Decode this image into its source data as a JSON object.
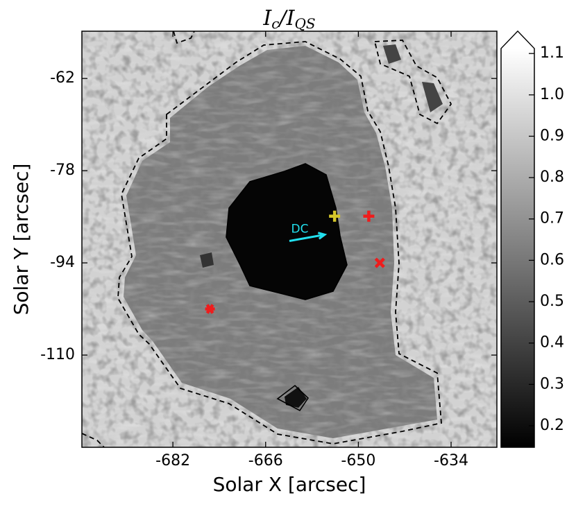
{
  "chart_data": {
    "type": "image",
    "title": [
      {
        "text": "I"
      },
      {
        "text": "c",
        "sub": true
      },
      {
        "text": "/I"
      },
      {
        "text": "QS",
        "sub": true
      }
    ],
    "xlabel": "Solar X [arcsec]",
    "ylabel": "Solar Y [arcsec]",
    "xlim": [
      -697.7,
      -626.1
    ],
    "ylim": [
      -126.0,
      -53.8
    ],
    "xticks": [
      -682,
      -666,
      -650,
      -634
    ],
    "yticks": [
      -62,
      -78,
      -94,
      -110
    ],
    "colormap": "gray",
    "colorbar": {
      "lim": [
        0.148,
        1.112
      ],
      "extend": "max",
      "ticks": [
        1.1,
        {
          "value": 1,
          "label": "1.0"
        },
        0.9,
        0.8,
        0.7,
        0.6,
        0.5,
        0.4,
        0.3,
        0.2
      ]
    },
    "markers": [
      {
        "x": -654.1,
        "y": -85.9,
        "symbol": "plus",
        "color": "#d4c62a"
      },
      {
        "x": -648.2,
        "y": -85.9,
        "symbol": "plus",
        "color": "#ee1c1c"
      },
      {
        "x": -646.3,
        "y": -94.0,
        "symbol": "x",
        "color": "#ee1c1c"
      },
      {
        "x": -675.6,
        "y": -102.0,
        "symbol": "star",
        "color": "#ee1c1c"
      }
    ],
    "annotations": [
      {
        "text": "DC",
        "x": -661.9,
        "y": -90.2,
        "x_end": -655.8,
        "y_end": -89.1,
        "color": "#22e0ee"
      }
    ]
  }
}
